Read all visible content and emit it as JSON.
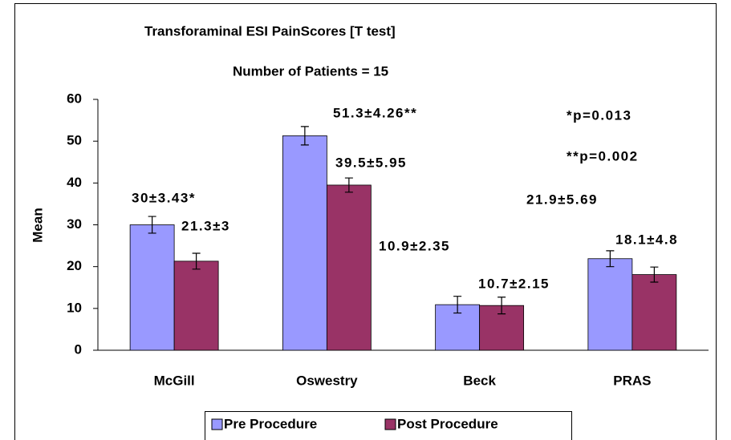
{
  "chart_data": {
    "type": "bar",
    "title": "Transforaminal ESI PainScores [T test]",
    "subtitle": "Number of Patients = 15",
    "y_label": "Mean",
    "categories": [
      "McGill",
      "Oswestry",
      "Beck",
      "PRAS"
    ],
    "series": [
      {
        "name": "Pre Procedure",
        "color": "#9999ff",
        "values": [
          30,
          51.3,
          10.9,
          21.9
        ],
        "errors": [
          2,
          2.2,
          2,
          1.9
        ],
        "value_labels": [
          "30±3.43*",
          "51.3±4.26**",
          "10.9±2.35",
          "21.9±5.69"
        ]
      },
      {
        "name": "Post Procedure",
        "color": "#993366",
        "values": [
          21.3,
          39.5,
          10.7,
          18.1
        ],
        "errors": [
          1.9,
          1.7,
          2,
          1.8
        ],
        "value_labels": [
          "21.3±3",
          "39.5±5.95",
          "10.7±2.15",
          "18.1±4.8"
        ]
      }
    ],
    "annotations": [
      "*p=0.013",
      "**p=0.002"
    ],
    "ylim": [
      0,
      60
    ],
    "yticks": [
      0,
      10,
      20,
      30,
      40,
      50,
      60
    ],
    "grid": false
  }
}
